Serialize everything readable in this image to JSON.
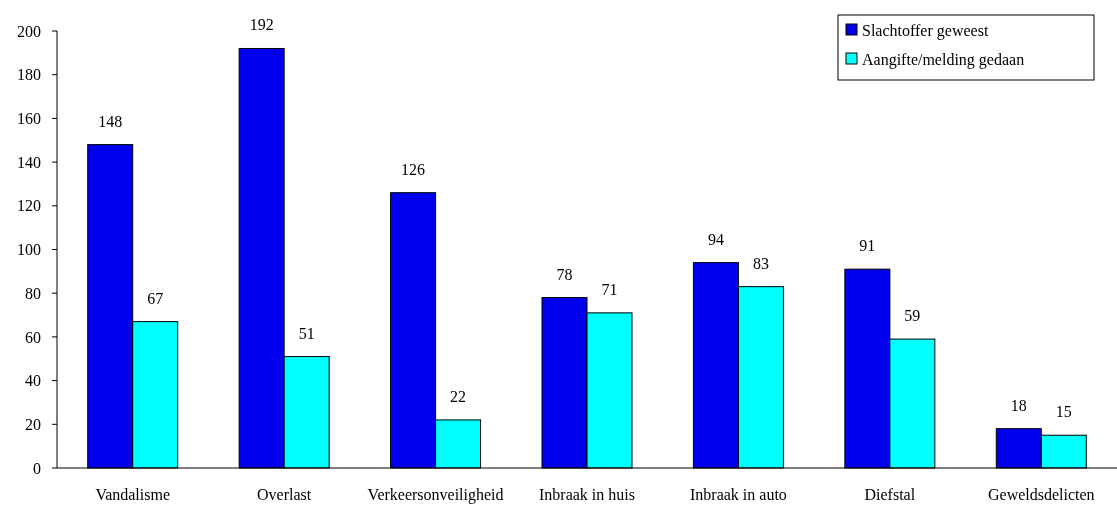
{
  "chart_data": {
    "type": "bar",
    "categories": [
      "Vandalisme",
      "Overlast",
      "Verkeersonveiligheid",
      "Inbraak in huis",
      "Inbraak in auto",
      "Diefstal",
      "Geweldsdelicten"
    ],
    "series": [
      {
        "name": "Slachtoffer geweest",
        "color": "#0000ee",
        "values": [
          148,
          192,
          126,
          78,
          94,
          91,
          18
        ]
      },
      {
        "name": "Aangifte/melding gedaan",
        "color": "#00ffff",
        "values": [
          67,
          51,
          22,
          71,
          83,
          59,
          15
        ]
      }
    ],
    "ylim": [
      0,
      200
    ],
    "yticks": [
      0,
      20,
      40,
      60,
      80,
      100,
      120,
      140,
      160,
      180,
      200
    ],
    "grid": false,
    "legend": "top right",
    "data_labels": true
  }
}
